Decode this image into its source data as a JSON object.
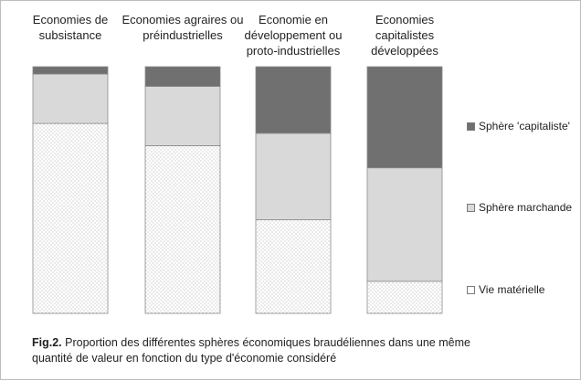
{
  "chart_data": {
    "type": "bar",
    "stacked": true,
    "categories": [
      "Economies de subsistance",
      "Economies agraires ou préindustrielles",
      "Economie en développement ou proto-industrielles",
      "Economies capitalistes développées"
    ],
    "series": [
      {
        "name": "Vie matérielle",
        "values": [
          77,
          68,
          38,
          13
        ],
        "color": "#ffffff",
        "pattern": "dots"
      },
      {
        "name": "Sphère marchande",
        "values": [
          20,
          24,
          35,
          46
        ],
        "color": "#d9d9d9"
      },
      {
        "name": "Sphère 'capitaliste'",
        "values": [
          3,
          8,
          27,
          41
        ],
        "color": "#707070"
      }
    ],
    "ylim": [
      0,
      100
    ],
    "grid": false,
    "legend_position": "right",
    "category_label_position": "top"
  },
  "caption": {
    "prefix": "Fig.2.",
    "text": "Proportion des différentes sphères économiques braudéliennes dans une même quantité de valeur en fonction du type d'économie considéré"
  }
}
